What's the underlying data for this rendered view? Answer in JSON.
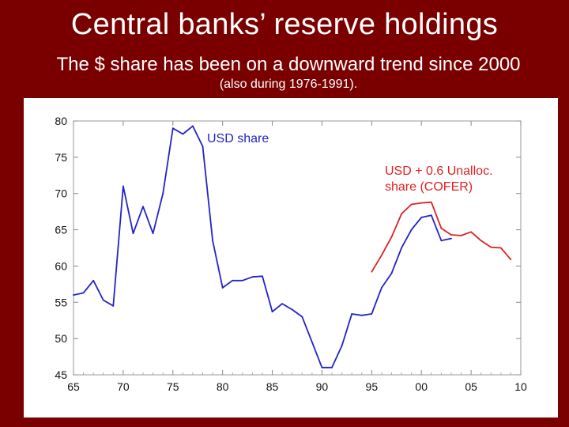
{
  "header": {
    "title": "Central banks’ reserve holdings",
    "subtitle": "The $ share has been on a downward trend since 2000",
    "note": "(also during 1976-1991)."
  },
  "colors": {
    "background": "#7a0000",
    "usd_share": "#2323c8",
    "cofer": "#e02020"
  },
  "chart_data": {
    "type": "line",
    "title": "",
    "xlabel": "",
    "ylabel": "",
    "xlim": [
      1965,
      2010
    ],
    "ylim": [
      45,
      80
    ],
    "grid": false,
    "x_ticks": [
      {
        "value": 1965,
        "label": "65"
      },
      {
        "value": 1970,
        "label": "70"
      },
      {
        "value": 1975,
        "label": "75"
      },
      {
        "value": 1980,
        "label": "80"
      },
      {
        "value": 1985,
        "label": "85"
      },
      {
        "value": 1990,
        "label": "90"
      },
      {
        "value": 1995,
        "label": "95"
      },
      {
        "value": 2000,
        "label": "00"
      },
      {
        "value": 2005,
        "label": "05"
      },
      {
        "value": 2010,
        "label": "10"
      }
    ],
    "y_ticks": [
      45,
      50,
      55,
      60,
      65,
      70,
      75,
      80
    ],
    "series": [
      {
        "name": "USD share",
        "color": "#2323c8",
        "label_lines": [
          "USD share"
        ],
        "points": [
          [
            1965,
            56.0
          ],
          [
            1966,
            56.3
          ],
          [
            1967,
            58.0
          ],
          [
            1968,
            55.3
          ],
          [
            1969,
            54.5
          ],
          [
            1970,
            71.0
          ],
          [
            1971,
            64.5
          ],
          [
            1972,
            68.2
          ],
          [
            1973,
            64.5
          ],
          [
            1974,
            70.0
          ],
          [
            1975,
            79.0
          ],
          [
            1976,
            78.2
          ],
          [
            1977,
            79.3
          ],
          [
            1978,
            76.5
          ],
          [
            1979,
            63.5
          ],
          [
            1980,
            57.0
          ],
          [
            1981,
            58.0
          ],
          [
            1982,
            58.0
          ],
          [
            1983,
            58.5
          ],
          [
            1984,
            58.6
          ],
          [
            1985,
            53.7
          ],
          [
            1986,
            54.8
          ],
          [
            1987,
            54.0
          ],
          [
            1988,
            53.0
          ],
          [
            1989,
            49.5
          ],
          [
            1990,
            46.0
          ],
          [
            1991,
            46.0
          ],
          [
            1992,
            49.0
          ],
          [
            1993,
            53.4
          ],
          [
            1994,
            53.2
          ],
          [
            1995,
            53.4
          ],
          [
            1996,
            57.0
          ],
          [
            1997,
            59.0
          ],
          [
            1998,
            62.5
          ],
          [
            1999,
            65.0
          ],
          [
            2000,
            66.7
          ],
          [
            2001,
            67.0
          ],
          [
            2002,
            63.5
          ],
          [
            2003,
            63.8
          ]
        ]
      },
      {
        "name": "USD + 0.6 Unalloc. share (COFER)",
        "color": "#e02020",
        "label_lines": [
          "USD + 0.6 Unalloc.",
          "share (COFER)"
        ],
        "points": [
          [
            1995,
            59.2
          ],
          [
            1996,
            61.5
          ],
          [
            1997,
            64.0
          ],
          [
            1998,
            67.2
          ],
          [
            1999,
            68.5
          ],
          [
            2000,
            68.7
          ],
          [
            2001,
            68.8
          ],
          [
            2002,
            65.2
          ],
          [
            2003,
            64.3
          ],
          [
            2004,
            64.2
          ],
          [
            2005,
            64.7
          ],
          [
            2006,
            63.5
          ],
          [
            2007,
            62.6
          ],
          [
            2008,
            62.5
          ],
          [
            2009,
            60.9
          ]
        ]
      }
    ]
  }
}
